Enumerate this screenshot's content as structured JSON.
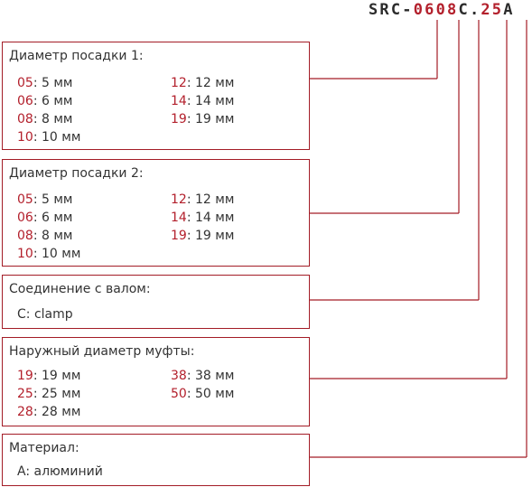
{
  "code": {
    "prefix": "SRC-",
    "d1": "06",
    "d2": "08",
    "conn": "C",
    "dot": ".",
    "outer": "25",
    "mat": "A"
  },
  "boxes": [
    {
      "title": "Диаметр посадки 1:",
      "left": [
        {
          "code": "05",
          "text": ": 5 мм"
        },
        {
          "code": "06",
          "text": ": 6 мм"
        },
        {
          "code": "08",
          "text": ": 8 мм"
        },
        {
          "code": "10",
          "text": ": 10 мм"
        }
      ],
      "right": [
        {
          "code": "12",
          "text": ": 12 мм"
        },
        {
          "code": "14",
          "text": ": 14 мм"
        },
        {
          "code": "19",
          "text": ": 19 мм"
        }
      ]
    },
    {
      "title": "Диаметр посадки 2:",
      "left": [
        {
          "code": "05",
          "text": ": 5 мм"
        },
        {
          "code": "06",
          "text": ": 6 мм"
        },
        {
          "code": "08",
          "text": ": 8 мм"
        },
        {
          "code": "10",
          "text": ": 10 мм"
        }
      ],
      "right": [
        {
          "code": "12",
          "text": ": 12 мм"
        },
        {
          "code": "14",
          "text": ": 14 мм"
        },
        {
          "code": "19",
          "text": ": 19 мм"
        }
      ]
    },
    {
      "title": "Соединение с валом:",
      "left": [
        {
          "code": "",
          "text": "C: clamp"
        }
      ],
      "right": []
    },
    {
      "title": "Наружный диаметр муфты:",
      "left": [
        {
          "code": "19",
          "text": ": 19 мм"
        },
        {
          "code": "25",
          "text": ": 25 мм"
        },
        {
          "code": "28",
          "text": ": 28 мм"
        }
      ],
      "right": [
        {
          "code": "38",
          "text": ": 38 мм"
        },
        {
          "code": "50",
          "text": ": 50 мм"
        }
      ]
    },
    {
      "title": "Материал:",
      "left": [
        {
          "code": "",
          "text": "A: алюминий"
        }
      ],
      "right": []
    }
  ]
}
